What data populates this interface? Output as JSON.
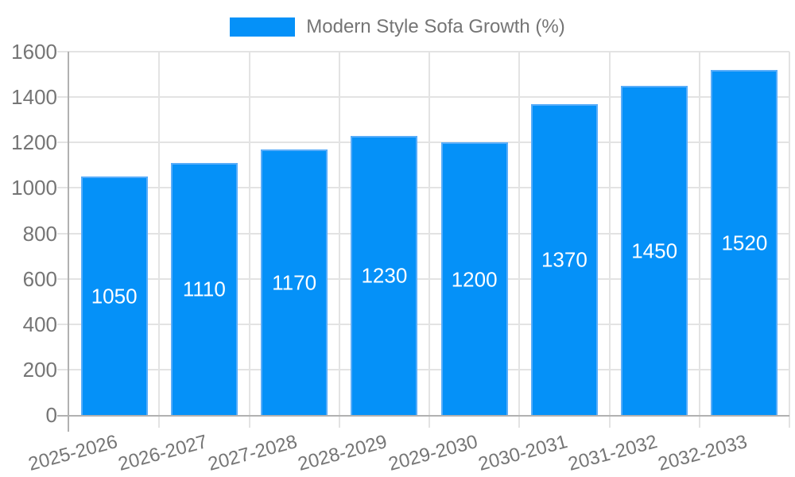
{
  "legend": {
    "label": "Modern Style Sofa Growth (%)"
  },
  "chart_data": {
    "type": "bar",
    "title": "Modern Style Sofa Growth (%)",
    "series_name": "Modern Style Sofa Growth (%)",
    "categories": [
      "2025-2026",
      "2026-2027",
      "2027-2028",
      "2028-2029",
      "2029-2030",
      "2030-2031",
      "2031-2032",
      "2032-2033"
    ],
    "values": [
      1050,
      1110,
      1170,
      1230,
      1200,
      1370,
      1450,
      1520
    ],
    "value_labels": [
      "1050",
      "1110",
      "1170",
      "1230",
      "1200",
      "1370",
      "1450",
      "1520"
    ],
    "xlabel": "",
    "ylabel": "",
    "ylim": [
      0,
      1600
    ],
    "yticks": [
      0,
      200,
      400,
      600,
      800,
      1000,
      1200,
      1400,
      1600
    ],
    "grid": true,
    "legend_position": "top",
    "x_label_rotation_deg": -15
  },
  "colors": {
    "bar_fill": "#0591f8",
    "bar_border": "#59adf9",
    "grid_line": "#e3e3e3",
    "axis_line": "#b1b1b1",
    "axis_text": "#757575",
    "value_text": "#ffffff",
    "background": "#ffffff"
  }
}
